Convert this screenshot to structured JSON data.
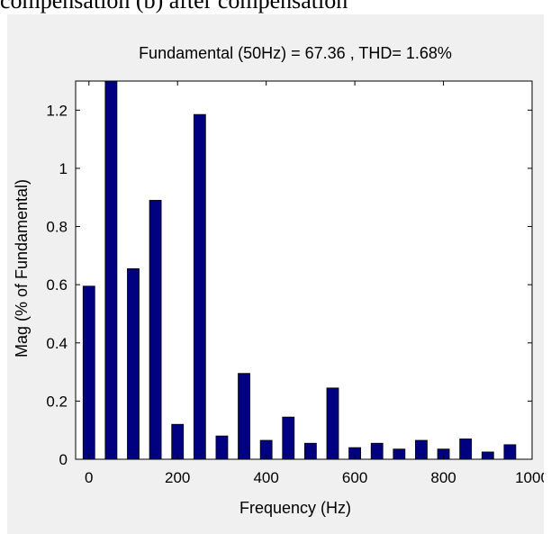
{
  "caption": "compensation (b) after compensation",
  "chart_data": {
    "type": "bar",
    "title": "Fundamental (50Hz) = 67.36 , THD= 1.68%",
    "xlabel": "Frequency (Hz)",
    "ylabel": "Mag (% of Fundamental)",
    "xlim": [
      -30,
      1000
    ],
    "ylim": [
      0,
      1.3
    ],
    "xticks": [
      "0",
      "200",
      "400",
      "600",
      "800",
      "1000"
    ],
    "yticks": [
      "0",
      "0.2",
      "0.4",
      "0.6",
      "0.8",
      "1",
      "1.2"
    ],
    "grid": false,
    "bar_color": "#000080",
    "x": [
      0,
      50,
      100,
      150,
      200,
      250,
      300,
      350,
      400,
      450,
      500,
      550,
      600,
      650,
      700,
      750,
      800,
      850,
      900,
      950
    ],
    "values": [
      0.595,
      1.3,
      0.655,
      0.89,
      0.12,
      1.185,
      0.08,
      0.295,
      0.065,
      0.145,
      0.055,
      0.245,
      0.04,
      0.055,
      0.035,
      0.065,
      0.035,
      0.07,
      0.025,
      0.05
    ]
  }
}
